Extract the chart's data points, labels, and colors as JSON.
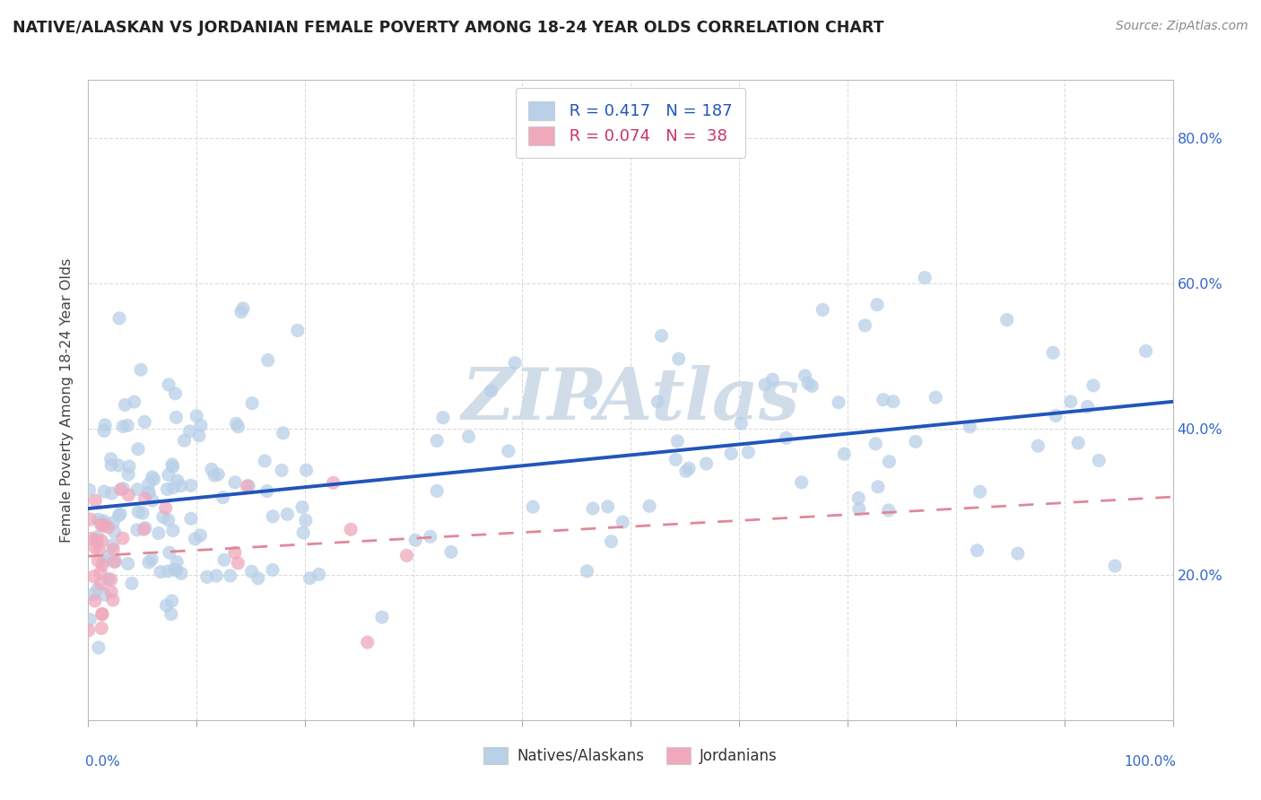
{
  "title": "NATIVE/ALASKAN VS JORDANIAN FEMALE POVERTY AMONG 18-24 YEAR OLDS CORRELATION CHART",
  "source": "Source: ZipAtlas.com",
  "ylabel": "Female Poverty Among 18-24 Year Olds",
  "ytick_vals": [
    0.2,
    0.4,
    0.6,
    0.8
  ],
  "legend_native_R": "0.417",
  "legend_native_N": "187",
  "legend_jordan_R": "0.074",
  "legend_jordan_N": "38",
  "native_color": "#b8d0e8",
  "jordan_color": "#f0a8bc",
  "native_line_color": "#2255bb",
  "jordan_line_color": "#e08898",
  "background_color": "#ffffff",
  "watermark_color": "#d0dde8",
  "seed": 17
}
